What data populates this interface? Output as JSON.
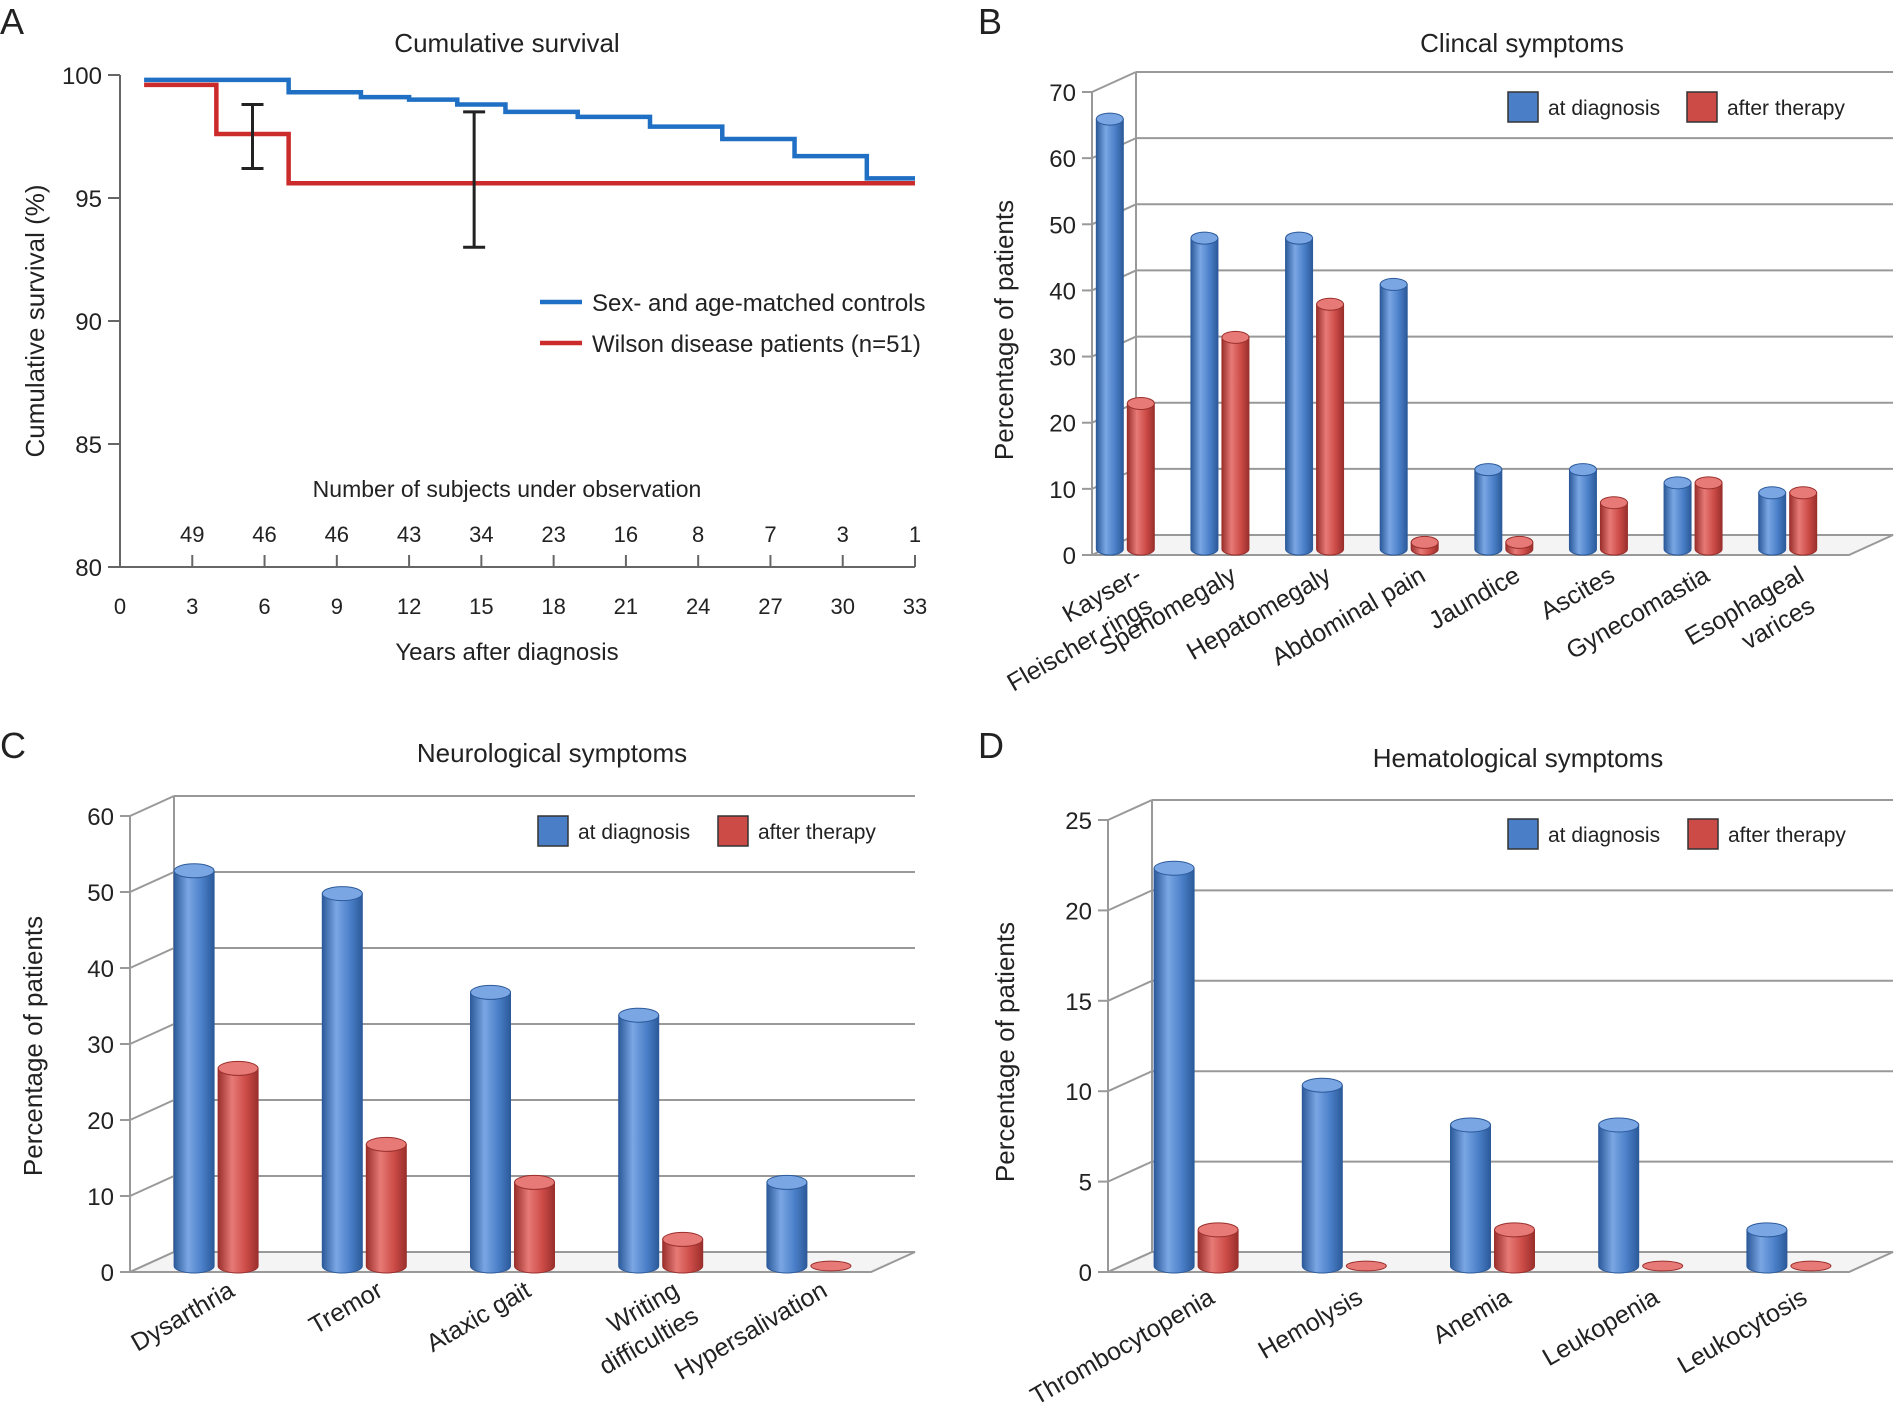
{
  "colors": {
    "blue": "#4a7fc8",
    "blue_dark": "#2c5a9a",
    "blue_light": "#7aa6e4",
    "red": "#cc4b47",
    "red_dark": "#9a2f2c",
    "red_light": "#e77a76",
    "line_blue": "#1f6fc4",
    "line_red": "#cc2b2b",
    "grid": "#999999",
    "axis": "#666666"
  },
  "chart_data": [
    {
      "panel": "A",
      "type": "line",
      "title": "Cumulative survival",
      "xlabel": "Years after diagnosis",
      "ylabel": "Cumulative survival (%)",
      "xlim": [
        0,
        33
      ],
      "ylim": [
        80,
        100
      ],
      "xticks": [
        0,
        3,
        6,
        9,
        12,
        15,
        18,
        21,
        24,
        27,
        30,
        33
      ],
      "yticks": [
        80,
        85,
        90,
        95,
        100
      ],
      "series": [
        {
          "name": "Sex- and age-matched controls",
          "color": "#1f6fc4",
          "x": [
            1,
            7,
            10,
            12,
            14,
            16,
            19,
            22,
            25,
            28,
            31,
            33
          ],
          "y": [
            99.8,
            99.3,
            99.1,
            99.0,
            98.8,
            98.5,
            98.3,
            97.9,
            97.4,
            96.7,
            95.8,
            95.8
          ]
        },
        {
          "name": "Wilson disease patients (n=51)",
          "color": "#cc2b2b",
          "x": [
            1,
            4,
            7,
            33
          ],
          "y": [
            99.6,
            97.6,
            95.6,
            95.6
          ]
        }
      ],
      "error_bars": [
        {
          "x": 5.5,
          "low": 96.2,
          "high": 98.8
        },
        {
          "x": 14.7,
          "low": 93.0,
          "high": 98.5
        }
      ],
      "risk_table": {
        "label": "Number of subjects under observation",
        "x": [
          3,
          6,
          9,
          12,
          15,
          18,
          21,
          24,
          27,
          30,
          33
        ],
        "counts": [
          "49",
          "46",
          "46",
          "43",
          "34",
          "23",
          "16",
          "8",
          "7",
          "3",
          "1"
        ]
      },
      "legend": "right"
    },
    {
      "panel": "B",
      "type": "bar",
      "title": "Clincal symptoms",
      "ylabel": "Percentage of patients",
      "ylim": [
        0,
        70
      ],
      "yticks": [
        0,
        10,
        20,
        30,
        40,
        50,
        60,
        70
      ],
      "categories": [
        [
          "Kayser-",
          "Fleischer rings"
        ],
        [
          "Spenomegaly"
        ],
        [
          "Hepatomegaly"
        ],
        [
          "Abdominal pain"
        ],
        [
          "Jaundice"
        ],
        [
          "Ascites"
        ],
        [
          "Gynecomastia"
        ],
        [
          "Esophageal",
          "varices"
        ]
      ],
      "series": [
        {
          "name": "at diagnosis",
          "values": [
            65,
            47,
            47,
            40,
            12,
            12,
            10,
            8.5
          ]
        },
        {
          "name": "after therapy",
          "values": [
            22,
            32,
            37,
            1,
            1,
            7,
            10,
            8.5
          ]
        }
      ],
      "legend": "top-right"
    },
    {
      "panel": "C",
      "type": "bar",
      "title": "Neurological symptoms",
      "ylabel": "Percentage of patients",
      "ylim": [
        0,
        60
      ],
      "yticks": [
        0,
        10,
        20,
        30,
        40,
        50,
        60
      ],
      "categories": [
        [
          "Dysarthria"
        ],
        [
          "Tremor"
        ],
        [
          "Ataxic gait"
        ],
        [
          "Writing",
          "difficulties"
        ],
        [
          "Hypersalivation"
        ]
      ],
      "series": [
        {
          "name": "at diagnosis",
          "values": [
            52,
            49,
            36,
            33,
            11
          ]
        },
        {
          "name": "after therapy",
          "values": [
            26,
            16,
            11,
            3.5,
            0
          ]
        }
      ],
      "legend": "top-right"
    },
    {
      "panel": "D",
      "type": "bar",
      "title": "Hematological symptoms",
      "ylabel": "Percentage of patients",
      "ylim": [
        0,
        25
      ],
      "yticks": [
        0,
        5,
        10,
        15,
        20,
        25
      ],
      "categories": [
        [
          "Thrombocytopenia"
        ],
        [
          "Hemolysis"
        ],
        [
          "Anemia"
        ],
        [
          "Leukopenia"
        ],
        [
          "Leukocytosis"
        ]
      ],
      "series": [
        {
          "name": "at diagnosis",
          "values": [
            22,
            10,
            7.8,
            7.8,
            2
          ]
        },
        {
          "name": "after therapy",
          "values": [
            2,
            0,
            2,
            0,
            0
          ]
        }
      ],
      "legend": "top-right"
    }
  ]
}
